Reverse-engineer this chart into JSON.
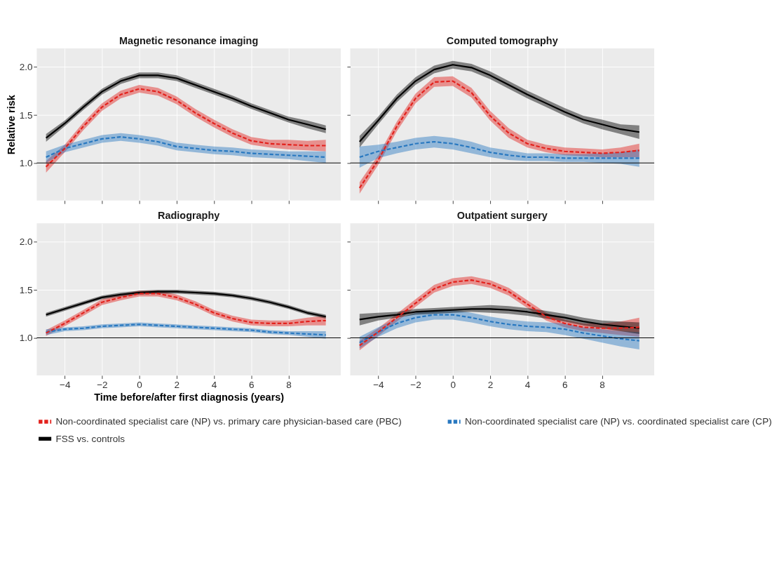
{
  "chart_data": [
    {
      "type": "line",
      "title": "Magnetic resonance imaging",
      "ylabel": "Relative risk",
      "legend": "bottom",
      "grid": true,
      "tick_labels": "y",
      "x": [
        -5,
        -4,
        -3,
        -2,
        -1,
        0,
        1,
        2,
        3,
        4,
        5,
        6,
        7,
        8,
        9,
        10
      ],
      "xlim": [
        -5.5,
        10.8
      ],
      "ylim": [
        0.61,
        2.19
      ],
      "xticks": [
        {
          "value": -4,
          "label": null
        },
        {
          "value": -2,
          "label": null
        },
        {
          "value": 0,
          "label": null
        },
        {
          "value": 2,
          "label": null
        },
        {
          "value": 4,
          "label": null
        },
        {
          "value": 6,
          "label": null
        },
        {
          "value": 8,
          "label": null
        }
      ],
      "yticks": [
        {
          "value": 1,
          "label": "1.0"
        },
        1.5,
        {
          "value": 2,
          "label": "2.0"
        }
      ],
      "ref_lines": [
        {
          "axis": "y",
          "value": 1,
          "color": "#000000"
        }
      ],
      "series": [
        {
          "name": "Non-coordinated specialist care (NP) vs. primary care physician-based care (PBC)",
          "color": "#e3211c",
          "line_style": "dashed",
          "values": [
            0.96,
            1.15,
            1.38,
            1.58,
            1.71,
            1.77,
            1.74,
            1.65,
            1.52,
            1.41,
            1.31,
            1.23,
            1.2,
            1.19,
            1.18,
            1.18
          ],
          "lower": [
            0.9,
            1.11,
            1.34,
            1.54,
            1.67,
            1.73,
            1.7,
            1.61,
            1.48,
            1.37,
            1.27,
            1.19,
            1.16,
            1.14,
            1.13,
            1.12
          ],
          "upper": [
            1.02,
            1.19,
            1.42,
            1.62,
            1.75,
            1.81,
            1.78,
            1.69,
            1.56,
            1.45,
            1.35,
            1.27,
            1.24,
            1.24,
            1.23,
            1.24
          ]
        },
        {
          "name": "Non-coordinated specialist care (NP) vs. coordinated specialist care (CP)",
          "color": "#2878c0",
          "line_style": "dashed",
          "values": [
            1.06,
            1.15,
            1.2,
            1.25,
            1.27,
            1.25,
            1.22,
            1.17,
            1.15,
            1.13,
            1.12,
            1.1,
            1.09,
            1.08,
            1.07,
            1.06
          ],
          "lower": [
            1.0,
            1.11,
            1.16,
            1.21,
            1.23,
            1.21,
            1.18,
            1.13,
            1.11,
            1.09,
            1.08,
            1.06,
            1.05,
            1.04,
            1.02,
            1.0
          ],
          "upper": [
            1.12,
            1.19,
            1.24,
            1.29,
            1.31,
            1.29,
            1.26,
            1.21,
            1.19,
            1.17,
            1.16,
            1.14,
            1.13,
            1.12,
            1.12,
            1.12
          ]
        },
        {
          "name": "FSS vs. controls",
          "color": "#000000",
          "line_style": "solid",
          "values": [
            1.26,
            1.41,
            1.58,
            1.74,
            1.85,
            1.91,
            1.91,
            1.88,
            1.81,
            1.74,
            1.67,
            1.59,
            1.52,
            1.45,
            1.4,
            1.35
          ],
          "lower": [
            1.22,
            1.38,
            1.55,
            1.71,
            1.82,
            1.88,
            1.88,
            1.85,
            1.78,
            1.71,
            1.64,
            1.56,
            1.49,
            1.42,
            1.36,
            1.31
          ],
          "upper": [
            1.3,
            1.44,
            1.61,
            1.77,
            1.88,
            1.94,
            1.94,
            1.91,
            1.84,
            1.77,
            1.7,
            1.62,
            1.55,
            1.48,
            1.44,
            1.39
          ]
        }
      ]
    },
    {
      "type": "line",
      "title": "Computed tomography",
      "grid": true,
      "tick_labels": false,
      "x": [
        -5,
        -4,
        -3,
        -2,
        -1,
        0,
        1,
        2,
        3,
        4,
        5,
        6,
        7,
        8,
        9,
        10
      ],
      "xlim": [
        -5.5,
        10.8
      ],
      "ylim": [
        0.61,
        2.19
      ],
      "xticks": [
        {
          "value": -4,
          "label": null
        },
        {
          "value": -2,
          "label": null
        },
        {
          "value": 0,
          "label": null
        },
        {
          "value": 2,
          "label": null
        },
        {
          "value": 4,
          "label": null
        },
        {
          "value": 6,
          "label": null
        },
        {
          "value": 8,
          "label": null
        }
      ],
      "yticks": [
        {
          "value": 1,
          "label": null
        },
        {
          "value": 1.5,
          "label": null
        },
        {
          "value": 2,
          "label": null
        }
      ],
      "ref_lines": [
        {
          "axis": "y",
          "value": 1,
          "color": "#000000"
        }
      ],
      "series": [
        {
          "color": "#e3211c",
          "line_style": "dashed",
          "values": [
            0.74,
            1.03,
            1.38,
            1.67,
            1.84,
            1.85,
            1.73,
            1.49,
            1.31,
            1.2,
            1.15,
            1.12,
            1.11,
            1.1,
            1.11,
            1.13
          ],
          "lower": [
            0.68,
            0.98,
            1.33,
            1.62,
            1.79,
            1.8,
            1.68,
            1.44,
            1.26,
            1.16,
            1.11,
            1.08,
            1.07,
            1.06,
            1.06,
            1.06
          ],
          "upper": [
            0.8,
            1.08,
            1.43,
            1.72,
            1.89,
            1.9,
            1.78,
            1.54,
            1.36,
            1.24,
            1.19,
            1.16,
            1.15,
            1.14,
            1.16,
            1.2
          ]
        },
        {
          "color": "#2878c0",
          "line_style": "dashed",
          "values": [
            1.06,
            1.12,
            1.16,
            1.2,
            1.22,
            1.2,
            1.16,
            1.11,
            1.08,
            1.06,
            1.06,
            1.05,
            1.05,
            1.05,
            1.05,
            1.05
          ],
          "lower": [
            0.95,
            1.05,
            1.1,
            1.14,
            1.16,
            1.14,
            1.1,
            1.06,
            1.03,
            1.02,
            1.02,
            1.01,
            1.01,
            1.0,
            0.99,
            0.96
          ],
          "upper": [
            1.17,
            1.19,
            1.22,
            1.26,
            1.28,
            1.26,
            1.22,
            1.16,
            1.13,
            1.1,
            1.1,
            1.09,
            1.09,
            1.1,
            1.11,
            1.14
          ]
        },
        {
          "color": "#000000",
          "line_style": "solid",
          "values": [
            1.22,
            1.44,
            1.67,
            1.85,
            1.97,
            2.02,
            1.99,
            1.91,
            1.81,
            1.71,
            1.62,
            1.53,
            1.45,
            1.4,
            1.35,
            1.32
          ],
          "lower": [
            1.16,
            1.4,
            1.63,
            1.81,
            1.93,
            1.98,
            1.95,
            1.87,
            1.77,
            1.67,
            1.58,
            1.49,
            1.41,
            1.35,
            1.3,
            1.25
          ],
          "upper": [
            1.28,
            1.48,
            1.71,
            1.89,
            2.01,
            2.06,
            2.03,
            1.95,
            1.85,
            1.75,
            1.66,
            1.57,
            1.49,
            1.45,
            1.4,
            1.39
          ]
        }
      ]
    },
    {
      "type": "line",
      "title": "Radiography",
      "xlabel": "Time before/after first diagnosis (years)",
      "grid": true,
      "x": [
        -5,
        -4,
        -3,
        -2,
        -1,
        0,
        1,
        2,
        3,
        4,
        5,
        6,
        7,
        8,
        9,
        10
      ],
      "xlim": [
        -5.5,
        10.8
      ],
      "ylim": [
        0.61,
        2.19
      ],
      "xticks": [
        {
          "value": -4,
          "label": "−4"
        },
        {
          "value": -2,
          "label": "−2"
        },
        0,
        2,
        4,
        6,
        8
      ],
      "yticks": [
        {
          "value": 1,
          "label": "1.0"
        },
        1.5,
        {
          "value": 2,
          "label": "2.0"
        }
      ],
      "ref_lines": [
        {
          "axis": "y",
          "value": 1,
          "color": "#000000"
        }
      ],
      "series": [
        {
          "color": "#e3211c",
          "line_style": "dashed",
          "values": [
            1.05,
            1.15,
            1.26,
            1.37,
            1.42,
            1.46,
            1.46,
            1.42,
            1.35,
            1.26,
            1.2,
            1.16,
            1.15,
            1.15,
            1.17,
            1.18
          ],
          "lower": [
            1.02,
            1.12,
            1.23,
            1.34,
            1.39,
            1.43,
            1.43,
            1.39,
            1.32,
            1.23,
            1.17,
            1.13,
            1.12,
            1.12,
            1.13,
            1.13
          ],
          "upper": [
            1.08,
            1.18,
            1.29,
            1.4,
            1.45,
            1.49,
            1.49,
            1.45,
            1.38,
            1.29,
            1.23,
            1.19,
            1.18,
            1.18,
            1.21,
            1.23
          ]
        },
        {
          "color": "#2878c0",
          "line_style": "dashed",
          "values": [
            1.06,
            1.09,
            1.1,
            1.12,
            1.13,
            1.14,
            1.13,
            1.12,
            1.11,
            1.1,
            1.09,
            1.08,
            1.06,
            1.05,
            1.04,
            1.03
          ],
          "lower": [
            1.03,
            1.07,
            1.08,
            1.1,
            1.11,
            1.12,
            1.11,
            1.1,
            1.09,
            1.08,
            1.07,
            1.06,
            1.04,
            1.03,
            1.01,
            0.99
          ],
          "upper": [
            1.09,
            1.11,
            1.12,
            1.14,
            1.15,
            1.16,
            1.15,
            1.14,
            1.13,
            1.12,
            1.11,
            1.1,
            1.08,
            1.07,
            1.07,
            1.07
          ]
        },
        {
          "color": "#000000",
          "line_style": "solid",
          "values": [
            1.24,
            1.3,
            1.36,
            1.42,
            1.45,
            1.47,
            1.48,
            1.48,
            1.47,
            1.46,
            1.44,
            1.41,
            1.37,
            1.32,
            1.26,
            1.22
          ],
          "lower": [
            1.22,
            1.28,
            1.34,
            1.4,
            1.43,
            1.45,
            1.46,
            1.46,
            1.45,
            1.44,
            1.42,
            1.39,
            1.35,
            1.3,
            1.24,
            1.2
          ],
          "upper": [
            1.26,
            1.32,
            1.38,
            1.44,
            1.47,
            1.49,
            1.5,
            1.5,
            1.49,
            1.48,
            1.46,
            1.43,
            1.39,
            1.34,
            1.28,
            1.24
          ]
        }
      ]
    },
    {
      "type": "line",
      "title": "Outpatient surgery",
      "grid": true,
      "tick_labels": "x",
      "x": [
        -5,
        -4,
        -3,
        -2,
        -1,
        0,
        1,
        2,
        3,
        4,
        5,
        6,
        7,
        8,
        9,
        10
      ],
      "xlim": [
        -5.5,
        10.8
      ],
      "ylim": [
        0.61,
        2.19
      ],
      "xticks": [
        {
          "value": -4,
          "label": "−4"
        },
        {
          "value": -2,
          "label": "−2"
        },
        0,
        2,
        4,
        6,
        8
      ],
      "yticks": [
        {
          "value": 1,
          "label": null
        },
        {
          "value": 1.5,
          "label": null
        },
        {
          "value": 2,
          "label": null
        }
      ],
      "ref_lines": [
        {
          "axis": "y",
          "value": 1,
          "color": "#000000"
        }
      ],
      "series": [
        {
          "color": "#e3211c",
          "line_style": "dashed",
          "values": [
            0.92,
            1.06,
            1.21,
            1.36,
            1.51,
            1.58,
            1.6,
            1.56,
            1.48,
            1.35,
            1.22,
            1.15,
            1.11,
            1.1,
            1.1,
            1.11
          ],
          "lower": [
            0.87,
            1.02,
            1.17,
            1.32,
            1.47,
            1.54,
            1.56,
            1.52,
            1.44,
            1.31,
            1.18,
            1.11,
            1.07,
            1.05,
            1.03,
            1.01
          ],
          "upper": [
            0.97,
            1.1,
            1.25,
            1.4,
            1.55,
            1.62,
            1.64,
            1.6,
            1.52,
            1.39,
            1.26,
            1.19,
            1.15,
            1.15,
            1.17,
            1.21
          ]
        },
        {
          "color": "#2878c0",
          "line_style": "dashed",
          "values": [
            0.95,
            1.06,
            1.15,
            1.21,
            1.24,
            1.24,
            1.21,
            1.17,
            1.14,
            1.12,
            1.11,
            1.09,
            1.05,
            1.02,
            0.99,
            0.97
          ],
          "lower": [
            0.89,
            1.01,
            1.1,
            1.16,
            1.19,
            1.19,
            1.16,
            1.12,
            1.09,
            1.07,
            1.06,
            1.03,
            0.99,
            0.95,
            0.91,
            0.88
          ],
          "upper": [
            1.01,
            1.11,
            1.2,
            1.26,
            1.29,
            1.29,
            1.26,
            1.22,
            1.19,
            1.17,
            1.16,
            1.15,
            1.11,
            1.09,
            1.07,
            1.06
          ]
        },
        {
          "color": "#000000",
          "line_style": "solid",
          "values": [
            1.19,
            1.22,
            1.24,
            1.27,
            1.28,
            1.29,
            1.3,
            1.3,
            1.29,
            1.27,
            1.24,
            1.21,
            1.17,
            1.14,
            1.12,
            1.1
          ],
          "lower": [
            1.13,
            1.18,
            1.21,
            1.24,
            1.25,
            1.26,
            1.27,
            1.26,
            1.25,
            1.23,
            1.2,
            1.17,
            1.13,
            1.1,
            1.07,
            1.04
          ],
          "upper": [
            1.25,
            1.26,
            1.27,
            1.3,
            1.31,
            1.32,
            1.33,
            1.34,
            1.33,
            1.31,
            1.28,
            1.25,
            1.21,
            1.18,
            1.17,
            1.16
          ]
        }
      ]
    }
  ]
}
